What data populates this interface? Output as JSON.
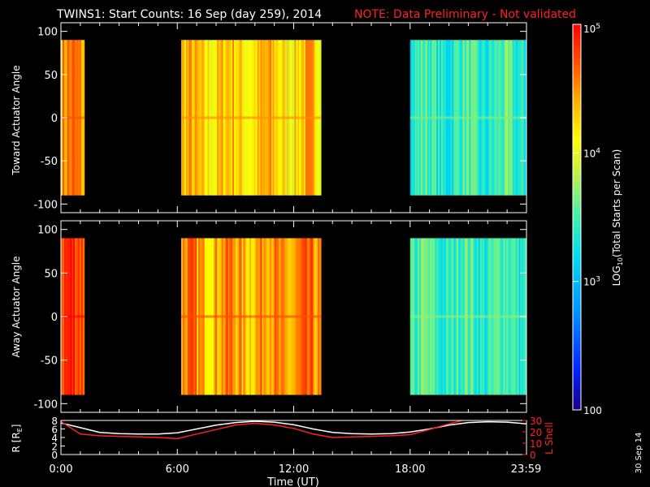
{
  "header": {
    "title": "TWINS1: Start Counts: 16 Sep (day 259), 2014",
    "note": "NOTE: Data Preliminary - Not validated"
  },
  "side_stamp": "30 Sep 14",
  "colors": {
    "note": "#ff2020",
    "axes": "#ffffff",
    "lshell": "#ff2020",
    "radius": "#ffffff"
  },
  "chart_data": [
    {
      "type": "heatmap",
      "panel": "toward",
      "ylabel": "Toward Actuator Angle",
      "ylim": [
        -110,
        110
      ],
      "yticks": [
        100,
        50,
        0,
        -50,
        -100
      ],
      "y_extent": [
        -90,
        90
      ],
      "xlim": [
        0,
        24
      ],
      "data_segments_hours": [
        [
          0,
          1.2
        ],
        [
          6.2,
          13.4
        ],
        [
          18.0,
          23.99
        ]
      ],
      "log_count_level_by_segment": [
        4.45,
        4.25,
        3.4
      ]
    },
    {
      "type": "heatmap",
      "panel": "away",
      "ylabel": "Away Actuator Angle",
      "ylim": [
        -110,
        110
      ],
      "yticks": [
        100,
        50,
        0,
        -50,
        -100
      ],
      "y_extent": [
        -90,
        90
      ],
      "xlim": [
        0,
        24
      ],
      "data_segments_hours": [
        [
          0,
          1.2
        ],
        [
          6.2,
          13.4
        ],
        [
          18.0,
          23.99
        ]
      ],
      "log_count_level_by_segment": [
        4.75,
        4.45,
        3.45
      ]
    },
    {
      "type": "line",
      "panel": "orbit",
      "ylabel_left": "R [R",
      "ylabel_left_sub": "E",
      "ylabel_left_end": "]",
      "ylabel_right": "L Shell",
      "xlabel": "Time (UT)",
      "xticks": [
        {
          "value": 0,
          "label": "0:00"
        },
        {
          "value": 6,
          "label": "6:00"
        },
        {
          "value": 12,
          "label": "12:00"
        },
        {
          "value": 18,
          "label": "18:00"
        },
        {
          "value": 23.98,
          "label": "23:59"
        }
      ],
      "xlim": [
        0,
        24
      ],
      "ylim_left": [
        0,
        8
      ],
      "yticks_left": [
        0,
        2,
        4,
        6,
        8
      ],
      "ylim_right": [
        0,
        30
      ],
      "yticks_right": [
        0,
        10,
        20,
        30
      ],
      "series": [
        {
          "axis": "left",
          "x": [
            0,
            1,
            2,
            3,
            4,
            5,
            6,
            7,
            8,
            9,
            10,
            11,
            12,
            13,
            14,
            15,
            16,
            17,
            18,
            19,
            20,
            21,
            22,
            23,
            24
          ],
          "values": [
            7.4,
            6.3,
            5.2,
            4.9,
            4.8,
            4.8,
            5.1,
            6.0,
            6.9,
            7.5,
            7.8,
            7.6,
            7.0,
            6.0,
            5.2,
            4.9,
            4.8,
            4.9,
            5.3,
            6.0,
            6.9,
            7.5,
            7.7,
            7.6,
            7.2
          ]
        },
        {
          "axis": "right",
          "x": [
            0,
            1,
            2,
            3,
            4,
            5,
            6,
            7,
            8,
            9,
            10,
            11,
            12,
            13,
            14,
            15,
            16,
            17,
            18,
            19,
            20,
            20.7
          ],
          "values": [
            29,
            18,
            16.5,
            16,
            15.5,
            15,
            14,
            18,
            22,
            26,
            27.5,
            26,
            23,
            18,
            15,
            15.5,
            16,
            16.5,
            17.5,
            22,
            27,
            30
          ]
        }
      ]
    },
    {
      "type": "heatmap",
      "panel": "colorbar",
      "label": "LOG",
      "label_sub": "10",
      "label_end": "(Total Starts per Scan)",
      "scale": "log",
      "range": [
        100,
        100000
      ],
      "ticks": [
        {
          "value": 100000,
          "base": "10",
          "exp": "5"
        },
        {
          "value": 10000,
          "base": "10",
          "exp": "4"
        },
        {
          "value": 1000,
          "base": "10",
          "exp": "3"
        },
        {
          "value": 100,
          "base": "100",
          "exp": ""
        }
      ]
    }
  ]
}
